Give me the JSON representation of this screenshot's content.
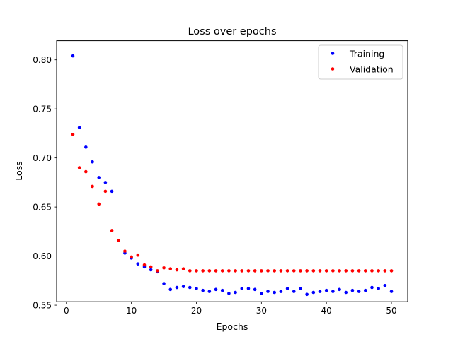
{
  "chart_data": {
    "type": "scatter",
    "title": "Loss over epochs",
    "xlabel": "Epochs",
    "ylabel": "Loss",
    "xlim": [
      -1.5,
      52.5
    ],
    "ylim": [
      0.5535,
      0.8195
    ],
    "xticks": [
      0,
      10,
      20,
      30,
      40,
      50
    ],
    "yticks": [
      0.55,
      0.6,
      0.65,
      0.7,
      0.75,
      0.8
    ],
    "xtick_labels": [
      "0",
      "10",
      "20",
      "30",
      "40",
      "50"
    ],
    "ytick_labels": [
      "0.55",
      "0.60",
      "0.65",
      "0.70",
      "0.75",
      "0.80"
    ],
    "grid": false,
    "legend_position": "top-right",
    "x": [
      1,
      2,
      3,
      4,
      5,
      6,
      7,
      8,
      9,
      10,
      11,
      12,
      13,
      14,
      15,
      16,
      17,
      18,
      19,
      20,
      21,
      22,
      23,
      24,
      25,
      26,
      27,
      28,
      29,
      30,
      31,
      32,
      33,
      34,
      35,
      36,
      37,
      38,
      39,
      40,
      41,
      42,
      43,
      44,
      45,
      46,
      47,
      48,
      49,
      50
    ],
    "series": [
      {
        "name": "Training",
        "color": "#0000ff",
        "values": [
          0.804,
          0.731,
          0.711,
          0.696,
          0.68,
          0.675,
          0.666,
          0.616,
          0.603,
          0.598,
          0.592,
          0.589,
          0.586,
          0.584,
          0.572,
          0.566,
          0.568,
          0.569,
          0.568,
          0.567,
          0.565,
          0.564,
          0.566,
          0.565,
          0.562,
          0.563,
          0.567,
          0.567,
          0.566,
          0.562,
          0.564,
          0.563,
          0.564,
          0.567,
          0.564,
          0.567,
          0.561,
          0.563,
          0.564,
          0.565,
          0.564,
          0.566,
          0.563,
          0.565,
          0.564,
          0.565,
          0.568,
          0.567,
          0.57,
          0.564
        ]
      },
      {
        "name": "Validation",
        "color": "#ff0000",
        "values": [
          0.724,
          0.69,
          0.686,
          0.671,
          0.653,
          0.666,
          0.626,
          0.616,
          0.605,
          0.599,
          0.601,
          0.591,
          0.589,
          0.585,
          0.588,
          0.587,
          0.586,
          0.587,
          0.585,
          0.585,
          0.585,
          0.585,
          0.585,
          0.585,
          0.585,
          0.585,
          0.585,
          0.585,
          0.585,
          0.585,
          0.585,
          0.585,
          0.585,
          0.585,
          0.585,
          0.585,
          0.585,
          0.585,
          0.585,
          0.585,
          0.585,
          0.585,
          0.585,
          0.585,
          0.585,
          0.585,
          0.585,
          0.585,
          0.585,
          0.585
        ]
      }
    ]
  }
}
